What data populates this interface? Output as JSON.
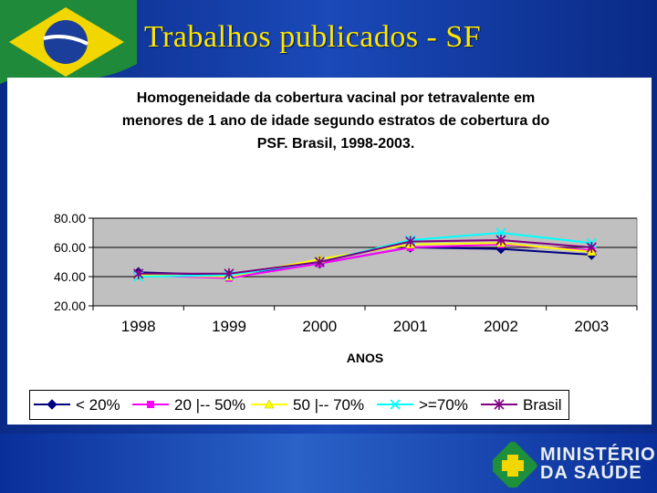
{
  "slide": {
    "title": "Trabalhos publicados - SF",
    "logo_line1": "MINISTÉRIO",
    "logo_line2": "DA SAÚDE"
  },
  "chart_data": {
    "type": "line",
    "title": "Homogeneidade da cobertura vacinal por tetravalente em menores de 1 ano de idade segundo estratos de cobertura do PSF. Brasil, 1998-2003.",
    "title_lines": [
      "Homogeneidade da cobertura vacinal por tetravalente em",
      "menores de 1 ano de idade segundo estratos de cobertura do",
      "PSF. Brasil, 1998-2003."
    ],
    "xlabel": "ANOS",
    "ylabel": "",
    "categories": [
      "1998",
      "1999",
      "2000",
      "2001",
      "2002",
      "2003"
    ],
    "ylim": [
      20,
      80
    ],
    "yticks": [
      "80.00",
      "60.00",
      "40.00",
      "20.00"
    ],
    "ytick_values": [
      80,
      60,
      40,
      20
    ],
    "grid": true,
    "legend_position": "bottom",
    "series": [
      {
        "name": "< 20%",
        "color": "#000080",
        "marker": "diamond",
        "values": [
          43,
          41,
          49,
          60,
          59,
          55
        ]
      },
      {
        "name": "20 |-- 50%",
        "color": "#ff00ff",
        "marker": "square",
        "values": [
          41,
          39,
          49,
          60,
          62,
          58
        ]
      },
      {
        "name": "50 |-- 70%",
        "color": "#ffff00",
        "marker": "triangle",
        "values": [
          41,
          40,
          52,
          62,
          63,
          57
        ]
      },
      {
        "name": ">=70%",
        "color": "#00ffff",
        "marker": "x",
        "values": [
          40,
          41,
          50,
          65,
          70,
          63
        ]
      },
      {
        "name": "Brasil",
        "color": "#800080",
        "marker": "star",
        "values": [
          42,
          42,
          50,
          64,
          65,
          60
        ]
      }
    ]
  }
}
